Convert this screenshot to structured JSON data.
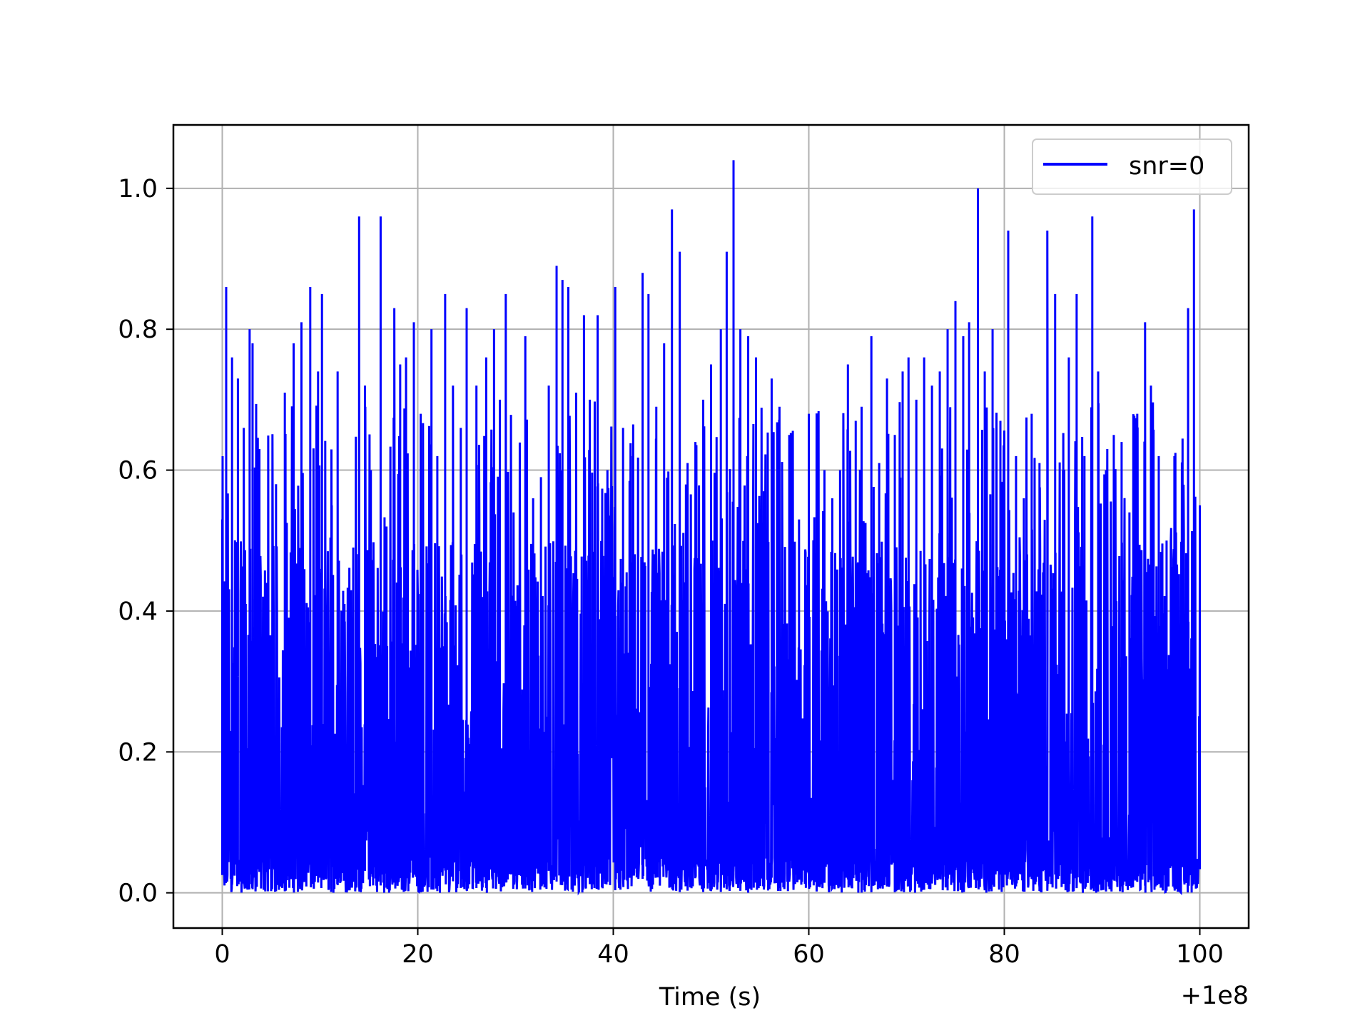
{
  "chart_data": {
    "type": "line",
    "title": "",
    "xlabel": "Time (s)",
    "ylabel": "",
    "x_offset_label": "+1e8",
    "xlim": [
      -5,
      105
    ],
    "ylim": [
      -0.05,
      1.09
    ],
    "x_ticks": [
      0,
      20,
      40,
      60,
      80,
      100
    ],
    "x_tick_labels": [
      "0",
      "20",
      "40",
      "60",
      "80",
      "100"
    ],
    "y_ticks": [
      0.0,
      0.2,
      0.4,
      0.6,
      0.8,
      1.0
    ],
    "y_tick_labels": [
      "0.0",
      "0.2",
      "0.4",
      "0.6",
      "0.8",
      "1.0"
    ],
    "grid": true,
    "legend_position": "top-right",
    "series": [
      {
        "name": "snr=0",
        "color": "#0000ff",
        "description_points": {
          "x": [
            0.0,
            0.4,
            1.0,
            1.6,
            2.2,
            2.8,
            3.1,
            3.8,
            4.5,
            5.5,
            6.4,
            7.3,
            8.1,
            9.0,
            9.8,
            10.2,
            11.2,
            11.8,
            12.5,
            13.4,
            14.0,
            14.6,
            15.2,
            16.2,
            16.8,
            17.6,
            18.2,
            18.8,
            19.6,
            20.3,
            21.4,
            22.0,
            22.8,
            23.6,
            24.4,
            25.0,
            26.0,
            27.0,
            27.8,
            28.4,
            29.0,
            29.8,
            31.0,
            31.8,
            32.6,
            33.4,
            34.2,
            34.8,
            35.4,
            36.2,
            37.0,
            37.6,
            38.4,
            39.4,
            40.2,
            41.0,
            42.0,
            43.0,
            43.6,
            44.4,
            45.2,
            46.0,
            46.8,
            47.6,
            48.4,
            49.2,
            50.0,
            51.0,
            51.6,
            52.3,
            53.0,
            53.8,
            54.6,
            55.4,
            56.2,
            57.0,
            58.0,
            59.0,
            60.0,
            60.8,
            61.6,
            62.4,
            63.2,
            64.0,
            64.8,
            65.4,
            66.4,
            67.2,
            68.0,
            68.8,
            69.6,
            70.2,
            71.0,
            71.8,
            72.6,
            73.4,
            74.2,
            75.0,
            75.8,
            76.4,
            77.3,
            78.0,
            78.8,
            79.6,
            80.4,
            81.2,
            82.0,
            82.8,
            83.6,
            84.4,
            85.2,
            86.0,
            86.6,
            87.4,
            88.2,
            89.0,
            89.6,
            90.4,
            91.2,
            92.0,
            92.8,
            93.6,
            94.4,
            95.0,
            95.8,
            96.6,
            97.4,
            98.2,
            98.8,
            99.4,
            100.0
          ],
          "y": [
            0.53,
            0.86,
            0.76,
            0.73,
            0.66,
            0.8,
            0.78,
            0.63,
            0.44,
            0.58,
            0.71,
            0.78,
            0.81,
            0.86,
            0.74,
            0.85,
            0.55,
            0.74,
            0.41,
            0.46,
            0.96,
            0.72,
            0.6,
            0.96,
            0.52,
            0.83,
            0.75,
            0.76,
            0.81,
            0.68,
            0.8,
            0.62,
            0.85,
            0.72,
            0.66,
            0.83,
            0.72,
            0.76,
            0.8,
            0.7,
            0.85,
            0.54,
            0.79,
            0.56,
            0.59,
            0.72,
            0.89,
            0.87,
            0.86,
            0.71,
            0.82,
            0.7,
            0.82,
            0.6,
            0.86,
            0.66,
            0.62,
            0.88,
            0.85,
            0.69,
            0.78,
            0.97,
            0.91,
            0.61,
            0.64,
            0.7,
            0.75,
            0.8,
            0.91,
            1.04,
            0.8,
            0.79,
            0.76,
            0.57,
            0.73,
            0.69,
            0.65,
            0.53,
            0.68,
            0.67,
            0.6,
            0.56,
            0.6,
            0.75,
            0.67,
            0.69,
            0.79,
            0.61,
            0.73,
            0.65,
            0.74,
            0.76,
            0.7,
            0.76,
            0.72,
            0.74,
            0.8,
            0.84,
            0.79,
            0.81,
            1.0,
            0.74,
            0.8,
            0.67,
            0.94,
            0.62,
            0.56,
            0.68,
            0.61,
            0.94,
            0.85,
            0.6,
            0.76,
            0.85,
            0.62,
            0.96,
            0.74,
            0.6,
            0.65,
            0.64,
            0.54,
            0.68,
            0.81,
            0.72,
            0.62,
            0.5,
            0.62,
            0.58,
            0.83,
            0.97,
            0.55
          ]
        },
        "noise_floor": 0.0,
        "typical_upper_band": 0.5
      }
    ]
  }
}
